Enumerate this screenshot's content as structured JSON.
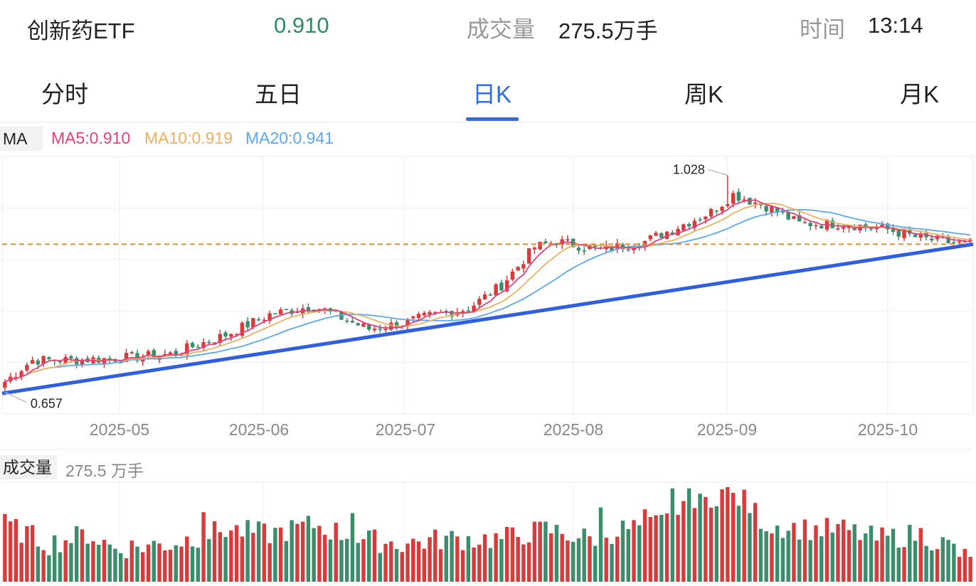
{
  "header": {
    "name": "创新药ETF",
    "price": "0.910",
    "volume_label": "成交量",
    "volume": "275.5万手",
    "time_label": "时间",
    "time": "13:14"
  },
  "tabs": [
    {
      "label": "分时",
      "active": false
    },
    {
      "label": "五日",
      "active": false
    },
    {
      "label": "日K",
      "active": true
    },
    {
      "label": "周K",
      "active": false
    },
    {
      "label": "月K",
      "active": false
    }
  ],
  "ma": {
    "tag": "MA",
    "ma5": "MA5:0.910",
    "ma10": "MA10:0.919",
    "ma20": "MA20:0.941"
  },
  "volume_panel": {
    "tag": "成交量",
    "value": "275.5 万手"
  },
  "colors": {
    "up": "#d63c3c",
    "down": "#3a8e6c",
    "ma5": "#e0407d",
    "ma10": "#f0b060",
    "ma20": "#5aa8f0",
    "trendline": "#2f5ee0",
    "ref_line": "#f08a1e",
    "accent": "#2d6ee8"
  },
  "chart_data": {
    "type": "candlestick",
    "x_ticks": [
      "2025-05",
      "2025-06",
      "2025-07",
      "2025-08",
      "2025-09",
      "2025-10"
    ],
    "y_range": [
      0.62,
      1.06
    ],
    "annotations": [
      {
        "label": "1.028",
        "value": 1.028,
        "kind": "high"
      },
      {
        "label": "0.657",
        "value": 0.657,
        "kind": "low"
      }
    ],
    "reference_line": 0.91,
    "trendline": {
      "start": 0.655,
      "end": 0.91
    },
    "waypoints": [
      [
        0,
        0.675
      ],
      [
        5,
        0.712
      ],
      [
        12,
        0.712
      ],
      [
        20,
        0.715
      ],
      [
        30,
        0.722
      ],
      [
        40,
        0.755
      ],
      [
        48,
        0.79
      ],
      [
        56,
        0.805
      ],
      [
        62,
        0.78
      ],
      [
        66,
        0.765
      ],
      [
        72,
        0.775
      ],
      [
        78,
        0.79
      ],
      [
        84,
        0.8
      ],
      [
        90,
        0.84
      ],
      [
        96,
        0.905
      ],
      [
        100,
        0.915
      ],
      [
        108,
        0.9
      ],
      [
        116,
        0.915
      ],
      [
        122,
        0.94
      ],
      [
        128,
        0.965
      ],
      [
        132,
        0.995
      ],
      [
        138,
        0.975
      ],
      [
        144,
        0.945
      ],
      [
        152,
        0.945
      ],
      [
        160,
        0.935
      ],
      [
        166,
        0.92
      ],
      [
        172,
        0.912
      ],
      [
        175,
        0.91
      ]
    ],
    "volume_waypoints": [
      [
        0,
        0.6
      ],
      [
        8,
        0.4
      ],
      [
        15,
        0.5
      ],
      [
        20,
        0.35
      ],
      [
        30,
        0.4
      ],
      [
        40,
        0.55
      ],
      [
        48,
        0.5
      ],
      [
        56,
        0.6
      ],
      [
        64,
        0.45
      ],
      [
        72,
        0.4
      ],
      [
        80,
        0.45
      ],
      [
        90,
        0.45
      ],
      [
        98,
        0.55
      ],
      [
        106,
        0.45
      ],
      [
        112,
        0.55
      ],
      [
        118,
        0.6
      ],
      [
        124,
        0.75
      ],
      [
        130,
        0.95
      ],
      [
        134,
        0.85
      ],
      [
        138,
        0.6
      ],
      [
        146,
        0.55
      ],
      [
        152,
        0.55
      ],
      [
        158,
        0.45
      ],
      [
        166,
        0.5
      ],
      [
        172,
        0.35
      ],
      [
        175,
        0.2
      ]
    ]
  }
}
